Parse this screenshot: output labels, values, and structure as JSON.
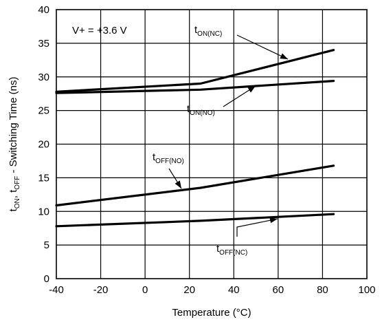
{
  "chart_data": {
    "type": "line",
    "xlabel": "Temperature (°C)",
    "ylabel": {
      "parts": [
        {
          "text": "t"
        },
        {
          "text": "ON",
          "sub": true
        },
        {
          "text": ", t"
        },
        {
          "text": "OFF",
          "sub": true
        },
        {
          "text": " - Switching Time (ns)"
        }
      ]
    },
    "xlim": [
      -40,
      100
    ],
    "ylim": [
      0,
      40
    ],
    "xticks": [
      -40,
      -20,
      0,
      20,
      40,
      60,
      80,
      100
    ],
    "yticks": [
      0,
      5,
      10,
      15,
      20,
      25,
      30,
      35,
      40
    ],
    "grid": true,
    "condition_label": "V+ = +3.6 V",
    "series": [
      {
        "name": "tON(NC)",
        "label_main": "t",
        "label_sub": "ON(NC)",
        "x": [
          -40,
          25,
          85
        ],
        "y": [
          27.8,
          29.0,
          34.0
        ]
      },
      {
        "name": "tON(NO)",
        "label_main": "t",
        "label_sub": "ON(NO)",
        "x": [
          -40,
          25,
          85
        ],
        "y": [
          27.6,
          28.1,
          29.4
        ]
      },
      {
        "name": "tOFF(NO)",
        "label_main": "t",
        "label_sub": "OFF(NO)",
        "x": [
          -40,
          25,
          85
        ],
        "y": [
          10.9,
          13.5,
          16.8
        ]
      },
      {
        "name": "tOFF(NC)",
        "label_main": "t",
        "label_sub": "OFF(NC)",
        "x": [
          -40,
          25,
          85
        ],
        "y": [
          7.8,
          8.6,
          9.6
        ]
      }
    ]
  }
}
